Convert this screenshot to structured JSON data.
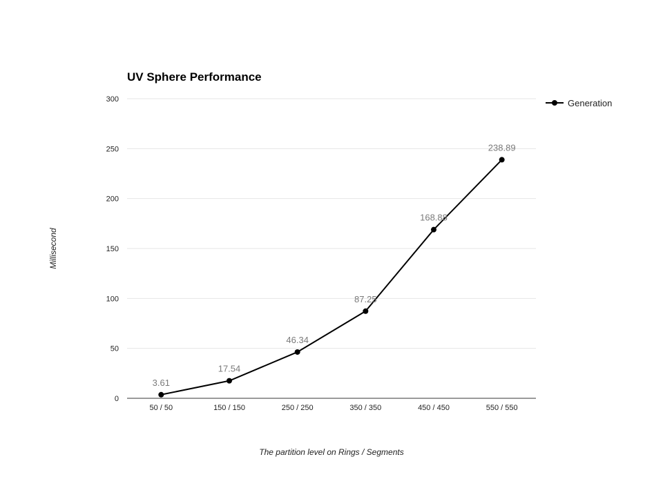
{
  "chart_data": {
    "type": "line",
    "title": "UV Sphere Performance",
    "xlabel": "The partition level on Rings / Segments",
    "ylabel": "Millisecond",
    "categories": [
      "50 / 50",
      "150 / 150",
      "250 / 250",
      "350 / 350",
      "450 / 450",
      "550 / 550"
    ],
    "series": [
      {
        "name": "Generation",
        "values": [
          3.61,
          17.54,
          46.34,
          87.25,
          168.88,
          238.89
        ],
        "labels": [
          "3.61",
          "17.54",
          "46.34",
          "87.25",
          "168.88",
          "238.89"
        ],
        "color": "#000000"
      }
    ],
    "ylim": [
      0,
      300
    ],
    "yticks": [
      0,
      50,
      100,
      150,
      200,
      250,
      300
    ],
    "grid": true,
    "legend_position": "right"
  }
}
